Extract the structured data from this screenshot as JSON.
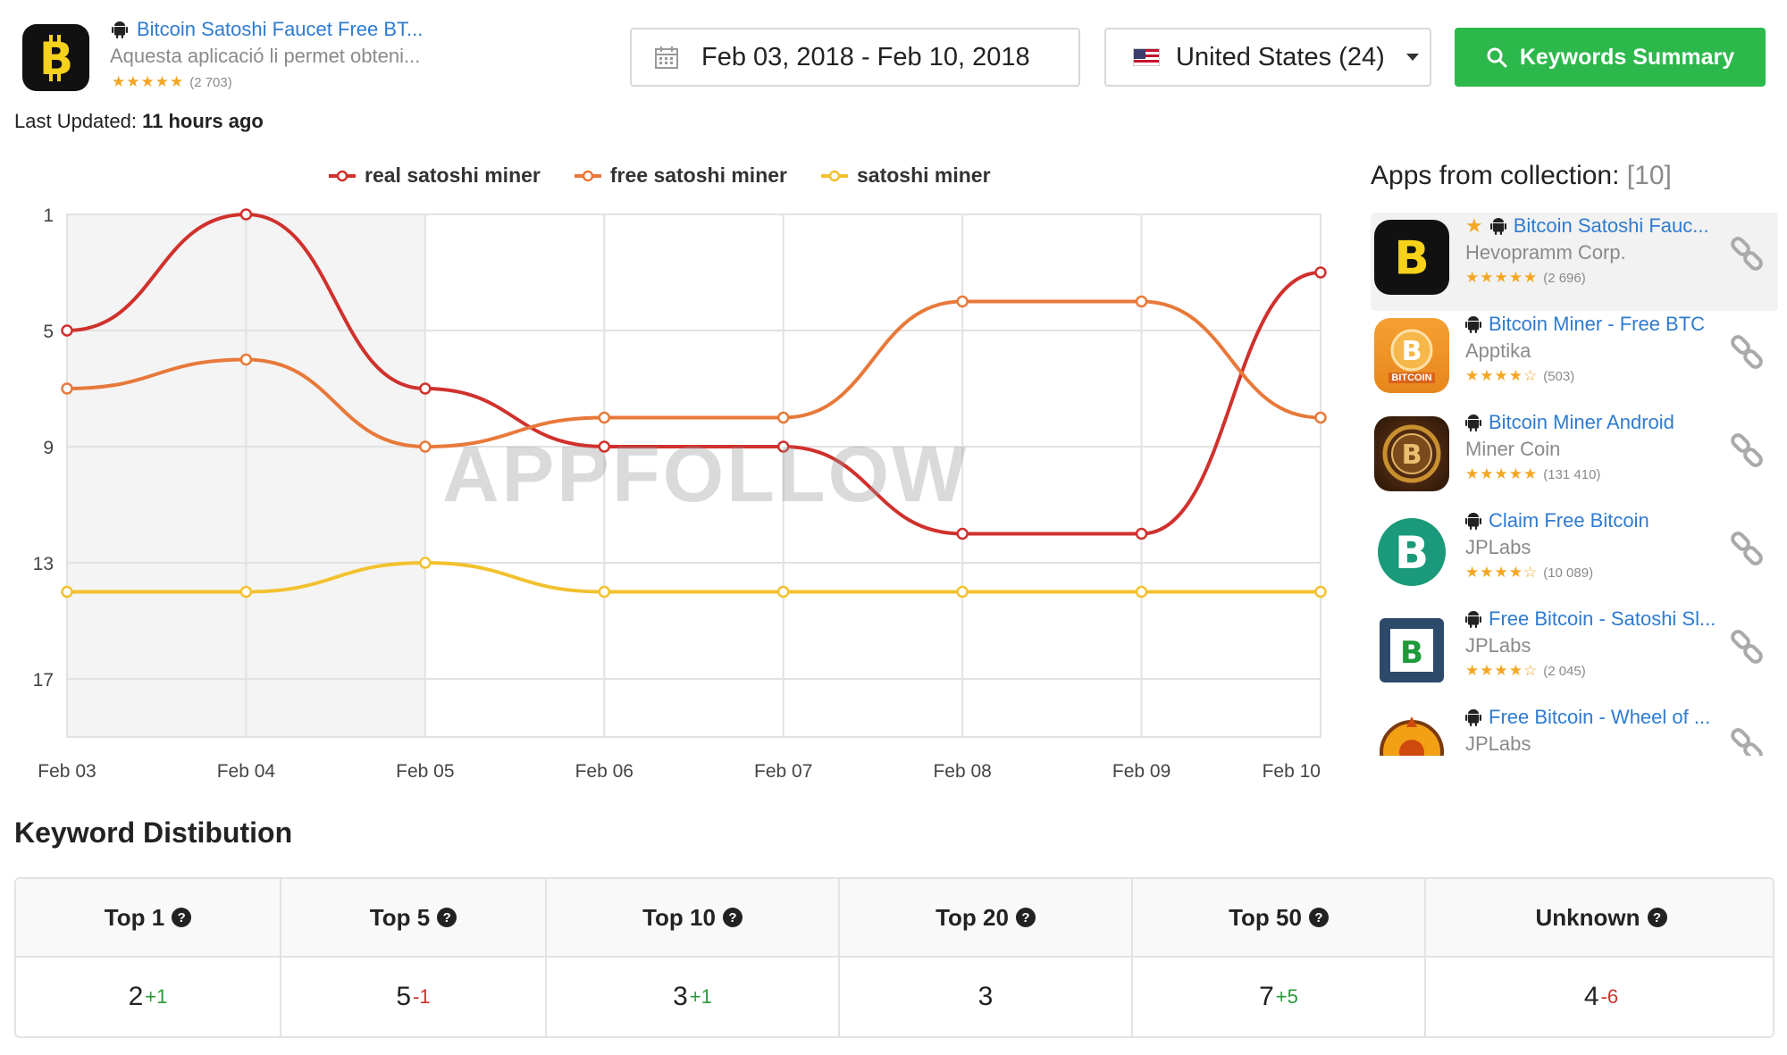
{
  "app": {
    "title": "Bitcoin Satoshi Faucet Free BT...",
    "description": "Aquesta aplicació li permet obteni...",
    "stars": "★★★★★",
    "rating_count": "(2 703)",
    "icon": "bitcoin-b-icon"
  },
  "last_updated": {
    "label": "Last Updated:",
    "value": "11 hours ago"
  },
  "date_range": {
    "value": "Feb 03, 2018 - Feb 10, 2018",
    "icon": "calendar-icon"
  },
  "country": {
    "value": "United States (24)",
    "icon": "us-flag-icon"
  },
  "keywords_button": {
    "label": "Keywords Summary",
    "icon": "search-icon"
  },
  "colors": {
    "accent_green": "#2db84c",
    "link_blue": "#2f7bd0",
    "star": "#f5a623"
  },
  "chart_data": {
    "type": "line",
    "x": [
      "Feb 03",
      "Feb 04",
      "Feb 05",
      "Feb 06",
      "Feb 07",
      "Feb 08",
      "Feb 09",
      "Feb 10"
    ],
    "yticks": [
      "1",
      "5",
      "9",
      "13",
      "17"
    ],
    "ylim": [
      1,
      19
    ],
    "y_inverted": true,
    "grid": true,
    "legend_position": "top",
    "watermark": "APPFOLLOW",
    "series": [
      {
        "name": "real satoshi miner",
        "color": "#d0312d",
        "values": [
          5,
          1,
          7,
          9,
          9,
          12,
          12,
          3
        ]
      },
      {
        "name": "free satoshi miner",
        "color": "#e8793a",
        "values": [
          7,
          6,
          9,
          8,
          8,
          4,
          4,
          8
        ]
      },
      {
        "name": "satoshi miner",
        "color": "#f2c12e",
        "values": [
          14,
          14,
          13,
          14,
          14,
          14,
          14,
          14
        ]
      }
    ]
  },
  "sidebar": {
    "title": "Apps from collection:",
    "count": "[10]",
    "items": [
      {
        "title": "Bitcoin Satoshi Fauc...",
        "developer": "Hevopramm Corp.",
        "stars": "★★★★★",
        "count": "(2 696)",
        "favorite": true
      },
      {
        "title": "Bitcoin Miner - Free BTC",
        "developer": "Apptika",
        "stars": "★★★★☆",
        "count": "(503)",
        "icon_label": "BITCOIN"
      },
      {
        "title": "Bitcoin Miner Android",
        "developer": "Miner Coin",
        "stars": "★★★★★",
        "count": "(131 410)"
      },
      {
        "title": "Claim Free Bitcoin",
        "developer": "JPLabs",
        "stars": "★★★★☆",
        "count": "(10 089)"
      },
      {
        "title": "Free Bitcoin - Satoshi Sl...",
        "developer": "JPLabs",
        "stars": "★★★★☆",
        "count": "(2 045)"
      },
      {
        "title": "Free Bitcoin - Wheel of ...",
        "developer": "JPLabs"
      }
    ]
  },
  "distribution": {
    "title": "Keyword Distibution",
    "columns": [
      {
        "label": "Top 1",
        "value": "2",
        "delta": "+1"
      },
      {
        "label": "Top 5",
        "value": "5",
        "delta": "-1"
      },
      {
        "label": "Top 10",
        "value": "3",
        "delta": "+1"
      },
      {
        "label": "Top 20",
        "value": "3",
        "delta": ""
      },
      {
        "label": "Top 50",
        "value": "7",
        "delta": "+5"
      },
      {
        "label": "Unknown",
        "value": "4",
        "delta": "-6"
      }
    ]
  }
}
